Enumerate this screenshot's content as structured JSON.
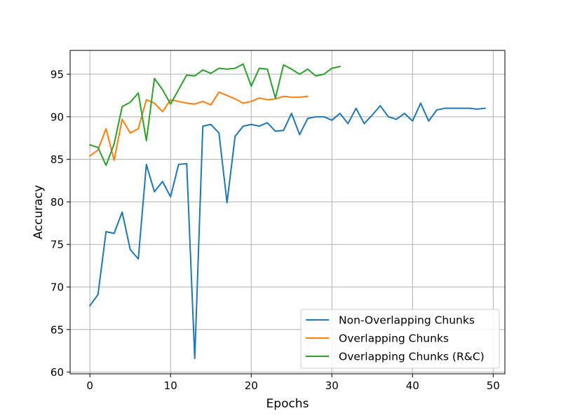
{
  "chart_data": {
    "type": "line",
    "xlabel": "Epochs",
    "ylabel": "Accuracy",
    "xlim": [
      -2.45,
      51.45
    ],
    "ylim": [
      59.8,
      97.8
    ],
    "x_ticks": [
      0,
      10,
      20,
      30,
      40,
      50
    ],
    "y_ticks": [
      60,
      65,
      70,
      75,
      80,
      85,
      90,
      95
    ],
    "grid": true,
    "legend_position": "lower-right",
    "series": [
      {
        "name": "Non-Overlapping Chunks",
        "color": "#1f77b4",
        "x": [
          0,
          1,
          2,
          3,
          4,
          5,
          6,
          7,
          8,
          9,
          10,
          11,
          12,
          13,
          14,
          15,
          16,
          17,
          18,
          19,
          20,
          21,
          22,
          23,
          24,
          25,
          26,
          27,
          28,
          29,
          30,
          31,
          32,
          33,
          34,
          35,
          36,
          37,
          38,
          39,
          40,
          41,
          42,
          43,
          44,
          45,
          46,
          47,
          48,
          49
        ],
        "values": [
          67.8,
          69.1,
          76.5,
          76.3,
          78.8,
          74.4,
          73.3,
          84.4,
          81.2,
          82.4,
          80.6,
          84.4,
          84.5,
          61.6,
          88.9,
          89.1,
          88.1,
          79.9,
          87.7,
          88.9,
          89.1,
          88.9,
          89.3,
          88.3,
          88.4,
          90.4,
          87.9,
          89.8,
          90.0,
          90.0,
          89.6,
          90.4,
          89.2,
          91.0,
          89.2,
          90.2,
          91.3,
          90.0,
          89.7,
          90.4,
          89.5,
          91.6,
          89.5,
          90.8,
          91.0,
          91.0,
          91.0,
          91.0,
          90.9,
          91.0
        ]
      },
      {
        "name": "Overlapping Chunks",
        "color": "#ff7f0e",
        "x": [
          0,
          1,
          2,
          3,
          4,
          5,
          6,
          7,
          8,
          9,
          10,
          11,
          12,
          13,
          14,
          15,
          16,
          17,
          18,
          19,
          20,
          21,
          22,
          23,
          24,
          25,
          26,
          27
        ],
        "values": [
          85.4,
          86.1,
          88.6,
          84.9,
          89.7,
          88.1,
          88.6,
          92.0,
          91.6,
          90.6,
          92.0,
          91.8,
          91.6,
          91.5,
          91.8,
          91.4,
          92.9,
          92.5,
          92.1,
          91.6,
          91.8,
          92.2,
          92.0,
          92.1,
          92.4,
          92.3,
          92.3,
          92.4
        ]
      },
      {
        "name": "Overlapping Chunks (R&C)",
        "color": "#2ca02c",
        "x": [
          0,
          1,
          2,
          3,
          4,
          5,
          6,
          7,
          8,
          9,
          10,
          11,
          12,
          13,
          14,
          15,
          16,
          17,
          18,
          19,
          20,
          21,
          22,
          23,
          24,
          25,
          26,
          27,
          28,
          29,
          30,
          31
        ],
        "values": [
          86.7,
          86.4,
          84.3,
          86.8,
          91.2,
          91.7,
          92.8,
          87.2,
          94.5,
          93.2,
          91.5,
          93.2,
          94.9,
          94.8,
          95.5,
          95.1,
          95.7,
          95.6,
          95.7,
          96.2,
          93.6,
          95.7,
          95.6,
          92.2,
          96.1,
          95.6,
          95.0,
          95.6,
          94.8,
          95.0,
          95.7,
          95.9
        ]
      }
    ]
  }
}
